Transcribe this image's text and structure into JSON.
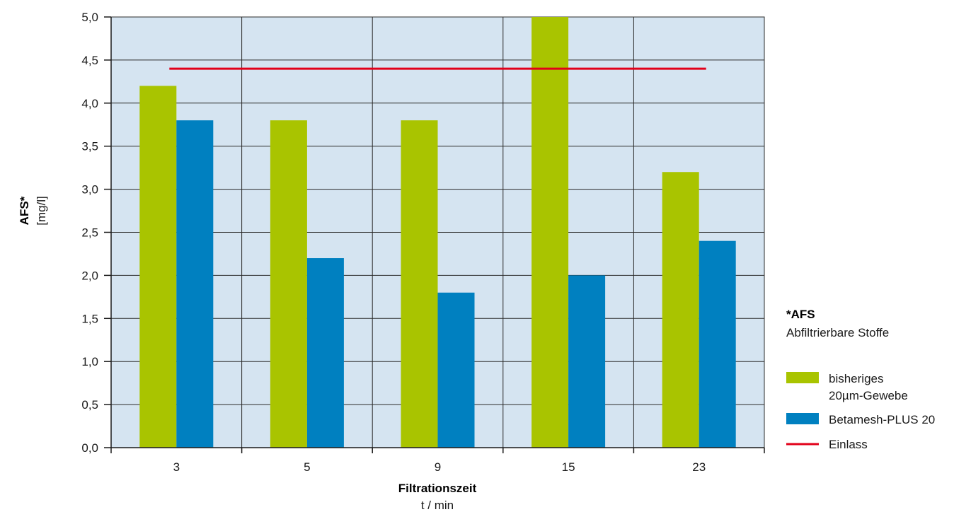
{
  "chart_data": {
    "type": "bar",
    "categories": [
      "3",
      "5",
      "9",
      "15",
      "23"
    ],
    "series": [
      {
        "name": "bisheriges 20µm-Gewebe",
        "name_lines": [
          "bisheriges",
          "20µm-Gewebe"
        ],
        "values": [
          4.2,
          3.8,
          3.8,
          5.0,
          3.2
        ],
        "color": "#a9c400"
      },
      {
        "name": "Betamesh-PLUS 20",
        "name_lines": [
          "Betamesh-PLUS 20"
        ],
        "values": [
          3.8,
          2.2,
          1.8,
          2.0,
          2.4
        ],
        "color": "#0080c0"
      }
    ],
    "reference_line": {
      "name": "Einlass",
      "value": 4.4,
      "color": "#e2001a"
    },
    "y_ticks": [
      "0,0",
      "0,5",
      "1,0",
      "1,5",
      "2,0",
      "2,5",
      "3,0",
      "3,5",
      "4,0",
      "4,5",
      "5,0"
    ],
    "ylim": [
      0,
      5
    ],
    "xlabel": "Filtrationszeit",
    "xlabel_unit": "t / min",
    "ylabel": "AFS*",
    "ylabel_unit": "[mg/l]",
    "grid": true,
    "legend_placement": "right",
    "footnote": {
      "heading": "*AFS",
      "text": "Abfiltrierbare Stoffe"
    },
    "plot_background": "#d5e4f1"
  }
}
